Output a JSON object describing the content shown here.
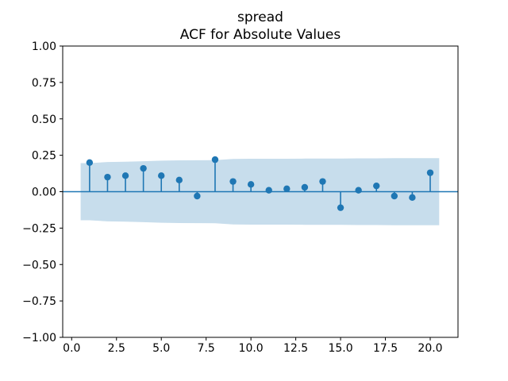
{
  "title": {
    "line1": "spread",
    "line2": "ACF for Absolute Values"
  },
  "colors": {
    "stem": "#1f77b4",
    "confidence_band": "#c7ddec",
    "axis": "#000000",
    "background": "#ffffff"
  },
  "chart_data": {
    "type": "stem",
    "title": "spread — ACF for Absolute Values",
    "xlabel": "",
    "ylabel": "",
    "grid": false,
    "legend": "none",
    "xlim": [
      -0.5,
      21.55
    ],
    "ylim": [
      -1.0,
      1.0
    ],
    "x": [
      1,
      2,
      3,
      4,
      5,
      6,
      7,
      8,
      9,
      10,
      11,
      12,
      13,
      14,
      15,
      16,
      17,
      18,
      19,
      20
    ],
    "values": [
      0.2,
      0.1,
      0.11,
      0.16,
      0.11,
      0.08,
      -0.03,
      0.22,
      0.07,
      0.05,
      0.01,
      0.02,
      0.03,
      0.07,
      -0.11,
      0.01,
      0.04,
      -0.03,
      -0.04,
      0.13
    ],
    "zero_line": 0.0,
    "conf_band": {
      "symmetric_about_zero": true,
      "x": [
        0.5,
        1,
        2,
        3,
        4,
        5,
        6,
        7,
        8,
        9,
        10,
        11,
        12,
        13,
        14,
        15,
        16,
        17,
        18,
        19,
        20,
        20.5
      ],
      "upper": [
        0.196,
        0.196,
        0.204,
        0.206,
        0.209,
        0.213,
        0.215,
        0.216,
        0.217,
        0.225,
        0.226,
        0.226,
        0.226,
        0.227,
        0.227,
        0.228,
        0.229,
        0.229,
        0.23,
        0.23,
        0.23,
        0.23
      ]
    },
    "x_ticks": {
      "values": [
        0,
        2.5,
        5,
        7.5,
        10,
        12.5,
        15,
        17.5,
        20
      ],
      "labels": [
        "0.0",
        "2.5",
        "5.0",
        "7.5",
        "10.0",
        "12.5",
        "15.0",
        "17.5",
        "20.0"
      ]
    },
    "y_ticks": {
      "values": [
        1.0,
        0.75,
        0.5,
        0.25,
        0.0,
        -0.25,
        -0.5,
        -0.75,
        -1.0
      ],
      "labels": [
        "1.00",
        "0.75",
        "0.50",
        "0.25",
        "0.00",
        "−0.25",
        "−0.50",
        "−0.75",
        "−1.00"
      ]
    }
  }
}
